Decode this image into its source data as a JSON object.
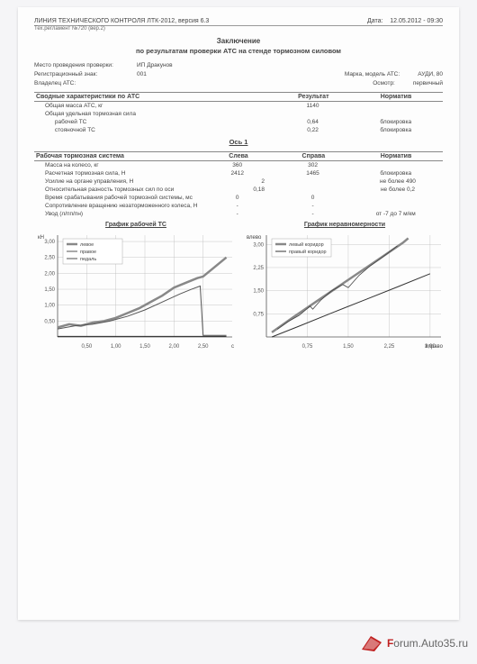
{
  "header": {
    "line": "ЛИНИЯ ТЕХНИЧЕСКОГО КОНТРОЛЯ ЛТК-2012, версия 6.3",
    "date_label": "Дата:",
    "date": "12.05.2012 - 09:30",
    "reg_doc": "Тех.регламент №720 (вер.2)"
  },
  "title1": "Заключение",
  "title2": "по результатам проверки АТС на стенде тормозном силовом",
  "meta": {
    "place_lbl": "Место проведения проверки:",
    "place_val": "ИП Дракунов",
    "reg_lbl": "Регистрационный знак:",
    "reg_val": "001",
    "brand_lbl": "Марка, модель АТС:",
    "brand_val": "АУДИ, 80",
    "owner_lbl": "Владелец АТС:",
    "owner_val": "",
    "inspect_lbl": "Осмотр:",
    "inspect_val": "первичный"
  },
  "summary": {
    "heading": "Сводные характеристики по АТС",
    "col_result": "Результат",
    "col_norm": "Норматив",
    "rows": [
      {
        "name": "Общая масса АТС, кг",
        "result": "1140",
        "norm": ""
      },
      {
        "name": "Общая удельная тормозная сила",
        "result": "",
        "norm": ""
      },
      {
        "name_indent": "рабочей ТС",
        "result": "0,64",
        "norm": "блокировка"
      },
      {
        "name_indent": "стояночной ТС",
        "result": "0,22",
        "norm": "блокировка"
      }
    ]
  },
  "axis1": {
    "title": "Ось 1",
    "heading": "Рабочая тормозная система",
    "col_left": "Слева",
    "col_right": "Справа",
    "col_norm": "Норматив",
    "rows": [
      {
        "name": "Масса на колесо, кг",
        "l": "360",
        "r": "302",
        "n": ""
      },
      {
        "name": "Расчетная тормозная сила, Н",
        "l": "2412",
        "r": "1465",
        "n": "блокировка"
      },
      {
        "name": "Усилие на органе управления, Н",
        "l": "",
        "c": "2",
        "r": "",
        "n": "не более 490"
      },
      {
        "name": "Относительная разность тормозных сил по оси",
        "l": "",
        "c": "0,18",
        "r": "",
        "n": "не более 0,2"
      },
      {
        "name": "Время срабатывания рабочей тормозной системы, мс",
        "l": "0",
        "r": "0",
        "n": ""
      },
      {
        "name": "Сопротивление вращению незаторможенного колеса, Н",
        "l": "-",
        "r": "-",
        "n": ""
      },
      {
        "name": "Увод (л/пп/пн)",
        "l": "-",
        "r": "-",
        "n": "от -7 до 7 м/км"
      }
    ]
  },
  "chart1": {
    "title": "График рабочей ТС",
    "ylabel": "кН",
    "xlabel": "c",
    "yticks": [
      "3,00",
      "2,50",
      "2,00",
      "1,50",
      "1,00",
      "0,50"
    ],
    "xticks": [
      "0,50",
      "1,00",
      "1,50",
      "2,00",
      "2,50"
    ],
    "legend": [
      "левое",
      "правое",
      "педаль"
    ],
    "colors": {
      "left": "#888888",
      "right": "#555555",
      "pedal": "#222222",
      "grid": "#bbbbbb",
      "axis": "#555"
    },
    "left_series": [
      [
        0,
        0.3
      ],
      [
        0.2,
        0.4
      ],
      [
        0.4,
        0.35
      ],
      [
        0.6,
        0.45
      ],
      [
        0.8,
        0.5
      ],
      [
        1.0,
        0.6
      ],
      [
        1.2,
        0.75
      ],
      [
        1.4,
        0.9
      ],
      [
        1.6,
        1.1
      ],
      [
        1.8,
        1.3
      ],
      [
        2.0,
        1.55
      ],
      [
        2.2,
        1.7
      ],
      [
        2.4,
        1.85
      ],
      [
        2.5,
        1.9
      ],
      [
        2.7,
        2.2
      ],
      [
        2.9,
        2.5
      ]
    ],
    "right_series": [
      [
        0,
        0.25
      ],
      [
        0.3,
        0.35
      ],
      [
        0.6,
        0.4
      ],
      [
        0.9,
        0.5
      ],
      [
        1.2,
        0.65
      ],
      [
        1.5,
        0.85
      ],
      [
        1.8,
        1.1
      ],
      [
        2.1,
        1.35
      ],
      [
        2.3,
        1.5
      ],
      [
        2.45,
        1.6
      ],
      [
        2.5,
        0.05
      ],
      [
        2.9,
        0.05
      ]
    ],
    "pedal_series": [
      [
        0,
        0.02
      ],
      [
        2.9,
        0.02
      ]
    ],
    "xlim": [
      0,
      3.0
    ],
    "ylim": [
      0,
      3.2
    ]
  },
  "chart2": {
    "title": "График неравномерности",
    "ylabel": "влево",
    "xlabel": "вправо",
    "yticks": [
      "3,00",
      "2,25",
      "1,50",
      "0,75"
    ],
    "xticks": [
      "0,75",
      "1,50",
      "2,25",
      "3,00"
    ],
    "legend": [
      "левый коридор",
      "правый коридор"
    ],
    "colors": {
      "left": "#888888",
      "right": "#333333",
      "grid": "#bbbbbb",
      "axis": "#555"
    },
    "left_corridor": [
      [
        0.1,
        0.15
      ],
      [
        0.5,
        0.65
      ],
      [
        1.0,
        1.25
      ],
      [
        1.5,
        1.85
      ],
      [
        2.0,
        2.45
      ],
      [
        2.5,
        3.05
      ],
      [
        2.6,
        3.2
      ]
    ],
    "right_corridor": [
      [
        0.1,
        0.0
      ],
      [
        0.6,
        0.35
      ],
      [
        1.2,
        0.78
      ],
      [
        1.8,
        1.2
      ],
      [
        2.4,
        1.62
      ],
      [
        3.0,
        2.05
      ]
    ],
    "actual": [
      [
        0.2,
        0.25
      ],
      [
        0.4,
        0.5
      ],
      [
        0.6,
        0.7
      ],
      [
        0.8,
        1.0
      ],
      [
        0.85,
        0.9
      ],
      [
        1.0,
        1.2
      ],
      [
        1.2,
        1.5
      ],
      [
        1.4,
        1.7
      ],
      [
        1.5,
        1.6
      ],
      [
        1.7,
        2.0
      ],
      [
        1.9,
        2.3
      ],
      [
        2.1,
        2.55
      ],
      [
        2.4,
        2.95
      ]
    ],
    "xlim": [
      0,
      3.2
    ],
    "ylim": [
      0,
      3.3
    ]
  },
  "watermark": {
    "f": "F",
    "rest": "orum.Auto35.ru"
  }
}
